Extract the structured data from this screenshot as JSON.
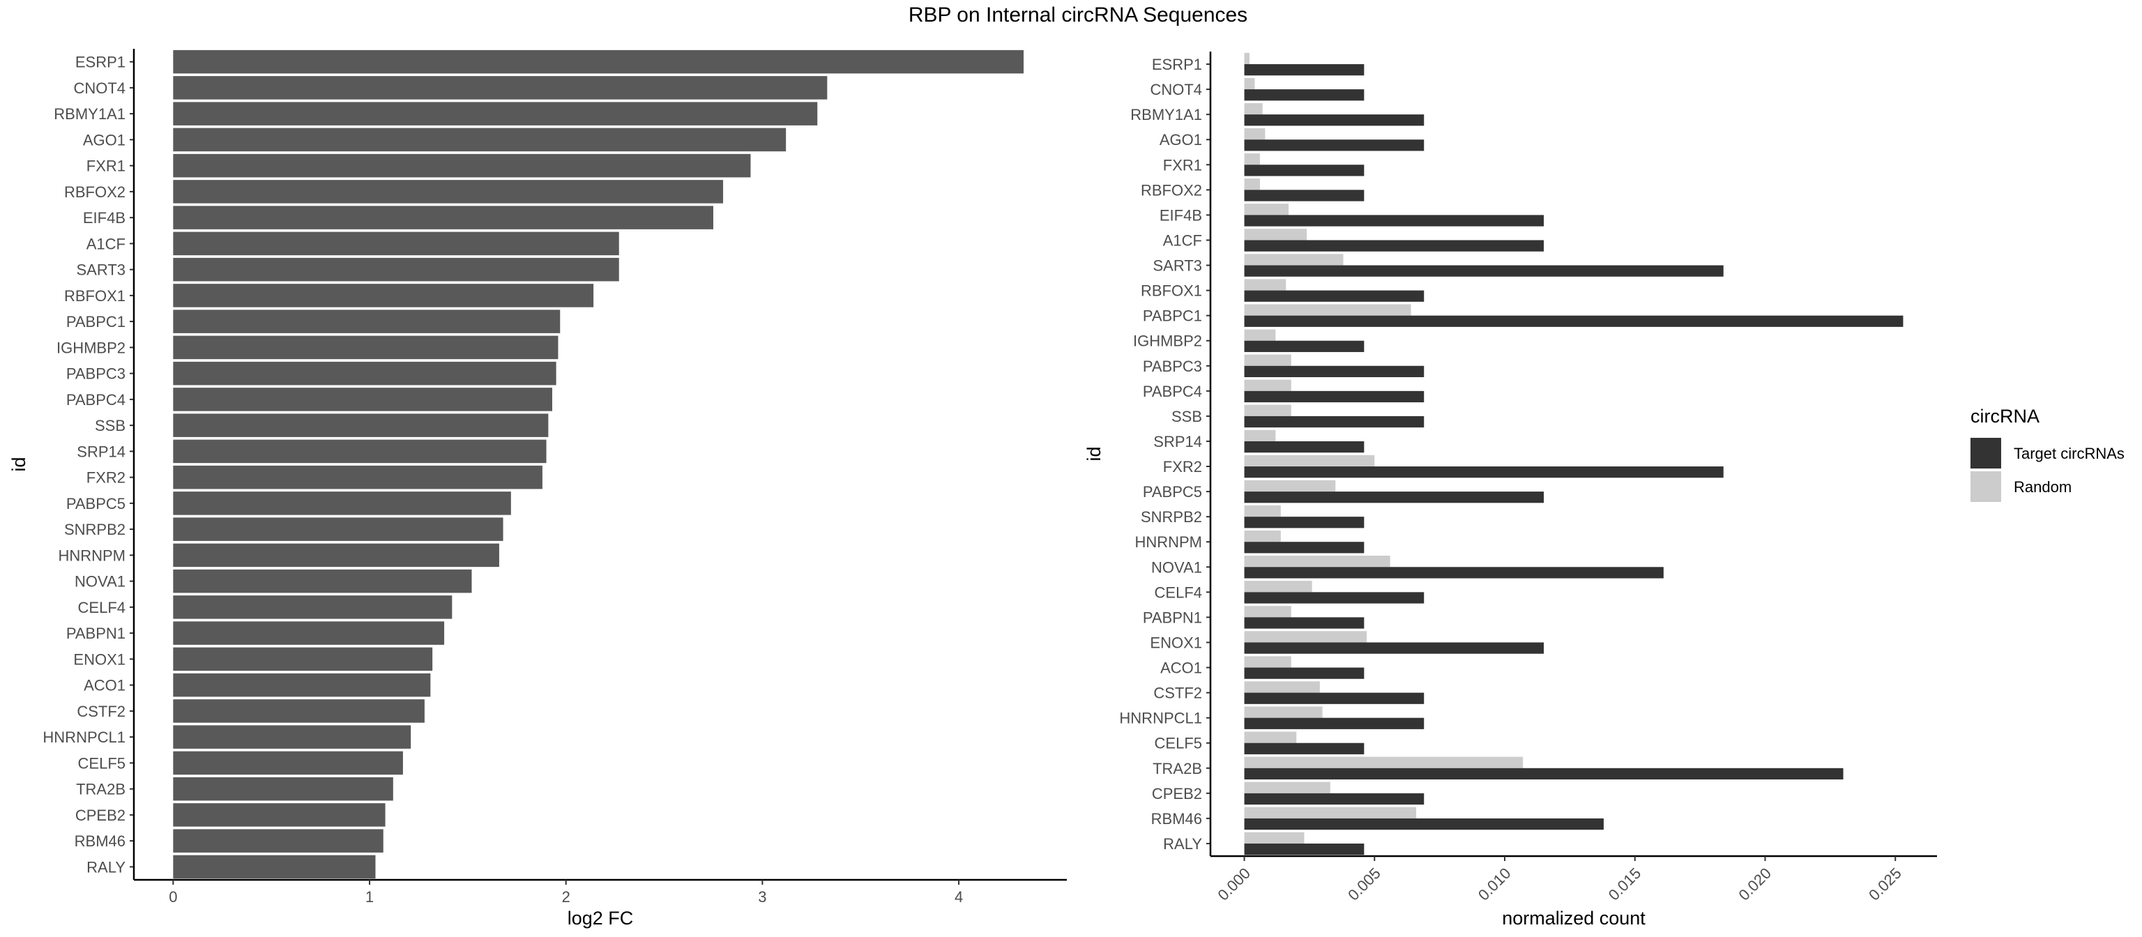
{
  "title": "RBP on Internal circRNA Sequences",
  "chart_data": [
    {
      "type": "bar",
      "orientation": "horizontal",
      "xlabel": "log2 FC",
      "ylabel": "id",
      "xlim": [
        -0.2,
        4.55
      ],
      "xticks": [
        "0",
        "1",
        "2",
        "3",
        "4"
      ],
      "grid": false,
      "categories": [
        "ESRP1",
        "CNOT4",
        "RBMY1A1",
        "AGO1",
        "FXR1",
        "RBFOX2",
        "EIF4B",
        "A1CF",
        "SART3",
        "RBFOX1",
        "PABPC1",
        "IGHMBP2",
        "PABPC3",
        "PABPC4",
        "SSB",
        "SRP14",
        "FXR2",
        "PABPC5",
        "SNRPB2",
        "HNRNPM",
        "NOVA1",
        "CELF4",
        "PABPN1",
        "ENOX1",
        "ACO1",
        "CSTF2",
        "HNRNPCL1",
        "CELF5",
        "TRA2B",
        "CPEB2",
        "RBM46",
        "RALY"
      ],
      "values": [
        4.33,
        3.33,
        3.28,
        3.12,
        2.94,
        2.8,
        2.75,
        2.27,
        2.27,
        2.14,
        1.97,
        1.96,
        1.95,
        1.93,
        1.91,
        1.9,
        1.88,
        1.72,
        1.68,
        1.66,
        1.52,
        1.42,
        1.38,
        1.32,
        1.31,
        1.28,
        1.21,
        1.17,
        1.12,
        1.08,
        1.07,
        1.03
      ],
      "colors": {
        "bar": "#595959"
      }
    },
    {
      "type": "bar",
      "orientation": "horizontal",
      "xlabel": "normalized count",
      "ylabel": "id",
      "xlim": [
        -0.0013,
        0.0266
      ],
      "xticks": [
        "0.000",
        "0.005",
        "0.010",
        "0.015",
        "0.020",
        "0.025"
      ],
      "grid": false,
      "categories": [
        "ESRP1",
        "CNOT4",
        "RBMY1A1",
        "AGO1",
        "FXR1",
        "RBFOX2",
        "EIF4B",
        "A1CF",
        "SART3",
        "RBFOX1",
        "PABPC1",
        "IGHMBP2",
        "PABPC3",
        "PABPC4",
        "SSB",
        "SRP14",
        "FXR2",
        "PABPC5",
        "SNRPB2",
        "HNRNPM",
        "NOVA1",
        "CELF4",
        "PABPN1",
        "ENOX1",
        "ACO1",
        "CSTF2",
        "HNRNPCL1",
        "CELF5",
        "TRA2B",
        "CPEB2",
        "RBM46",
        "RALY"
      ],
      "series": [
        {
          "name": "Target circRNAs",
          "color": "#333333",
          "values": [
            0.0046,
            0.0046,
            0.0069,
            0.0069,
            0.0046,
            0.0046,
            0.0115,
            0.0115,
            0.0184,
            0.0069,
            0.0253,
            0.0046,
            0.0069,
            0.0069,
            0.0069,
            0.0046,
            0.0184,
            0.0115,
            0.0046,
            0.0046,
            0.0161,
            0.0069,
            0.0046,
            0.0115,
            0.0046,
            0.0069,
            0.0069,
            0.0046,
            0.023,
            0.0069,
            0.0138,
            0.0046
          ]
        },
        {
          "name": "Random",
          "color": "#cccccc",
          "values": [
            0.0002,
            0.0004,
            0.0007,
            0.0008,
            0.0006,
            0.0006,
            0.0017,
            0.0024,
            0.0038,
            0.0016,
            0.0064,
            0.0012,
            0.0018,
            0.0018,
            0.0018,
            0.0012,
            0.005,
            0.0035,
            0.0014,
            0.0014,
            0.0056,
            0.0026,
            0.0018,
            0.0047,
            0.0018,
            0.0029,
            0.003,
            0.002,
            0.0107,
            0.0033,
            0.0066,
            0.0023
          ]
        }
      ],
      "legend": {
        "title": "circRNA",
        "position": "right",
        "entries": [
          "Target circRNAs",
          "Random"
        ]
      }
    }
  ]
}
